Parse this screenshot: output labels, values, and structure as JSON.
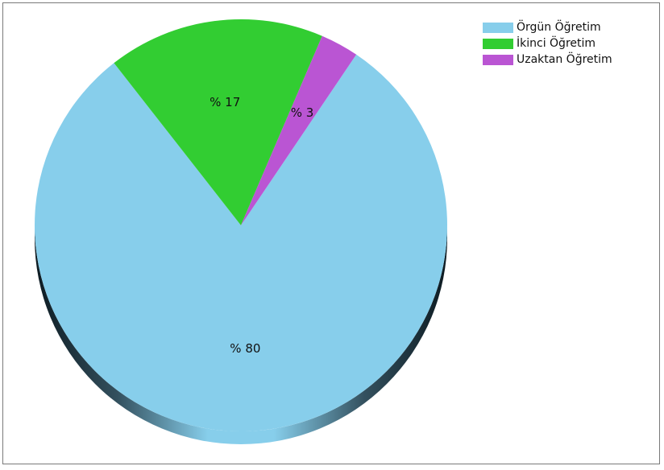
{
  "chart_data": {
    "type": "pie",
    "title": "",
    "series": [
      {
        "name": "Örgün Öğretim",
        "value": 80,
        "label": "% 80",
        "color": "#87ceeb"
      },
      {
        "name": "İkinci Öğretim",
        "value": 17,
        "label": "% 17",
        "color": "#32cd32"
      },
      {
        "name": "Uzaktan Öğretim",
        "value": 3,
        "label": "% 3",
        "color": "#ba55d3"
      }
    ],
    "legend_position": "top-right",
    "style": "3d"
  }
}
